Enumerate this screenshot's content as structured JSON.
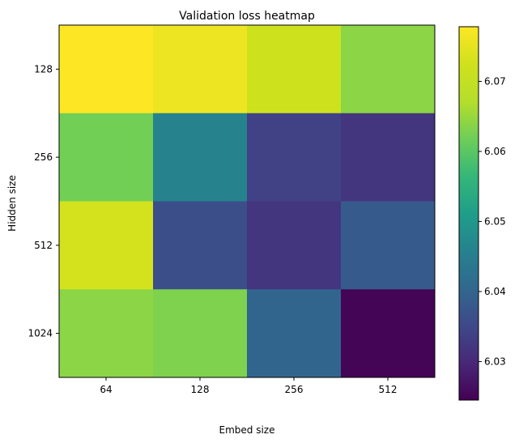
{
  "chart_data": {
    "type": "heatmap",
    "title": "Validation loss heatmap",
    "xlabel": "Embed size",
    "ylabel": "Hidden size",
    "x_categories": [
      "64",
      "128",
      "256",
      "512"
    ],
    "y_categories": [
      "128",
      "256",
      "512",
      "1024"
    ],
    "values": [
      [
        6.078,
        6.076,
        6.072,
        6.064
      ],
      [
        6.062,
        6.046,
        6.034,
        6.032
      ],
      [
        6.073,
        6.036,
        6.032,
        6.038
      ],
      [
        6.064,
        6.063,
        6.04,
        6.025
      ]
    ],
    "colorscale": "viridis",
    "color_range": [
      6.0245,
      6.0778
    ],
    "colorbar_ticks": [
      "6.03",
      "6.04",
      "6.05",
      "6.06",
      "6.07"
    ],
    "colorbar_tick_values": [
      6.03,
      6.04,
      6.05,
      6.06,
      6.07
    ]
  }
}
